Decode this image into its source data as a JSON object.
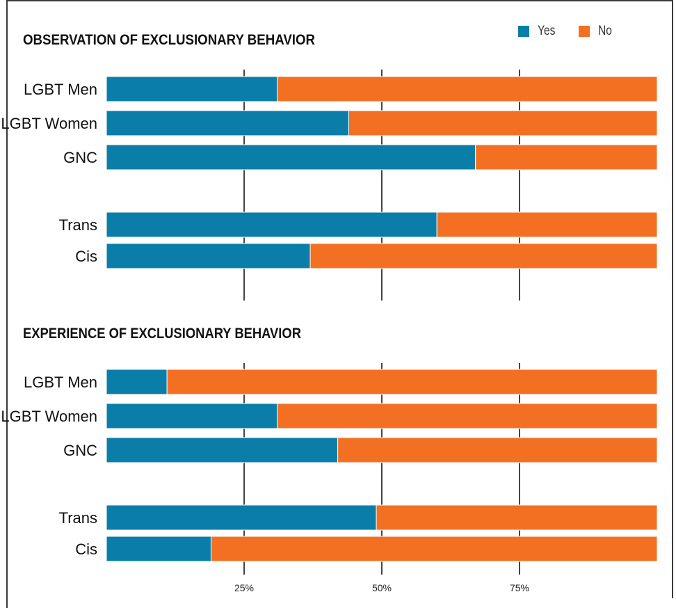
{
  "legend": {
    "yes_label": "Yes",
    "no_label": "No",
    "yes_color": "#0a7ea8",
    "no_color": "#f37023"
  },
  "chart_data": [
    {
      "type": "bar",
      "orientation": "horizontal",
      "stacked": true,
      "title": "OBSERVATION OF EXCLUSIONARY BEHAVIOR",
      "categories": [
        "LGBT Men",
        "LGBT Women",
        "GNC",
        "Trans",
        "Cis"
      ],
      "series": [
        {
          "name": "Yes",
          "color": "#0a7ea8",
          "values": [
            31,
            44,
            67,
            60,
            37
          ]
        },
        {
          "name": "No",
          "color": "#f37023",
          "values": [
            69,
            56,
            33,
            40,
            63
          ]
        }
      ],
      "xlim": [
        0,
        100
      ],
      "x_ticks": [
        25,
        50,
        75
      ],
      "x_tick_labels": [
        "",
        "",
        ""
      ],
      "legend_position": "top-right",
      "grid": true
    },
    {
      "type": "bar",
      "orientation": "horizontal",
      "stacked": true,
      "title": "EXPERIENCE OF EXCLUSIONARY BEHAVIOR",
      "categories": [
        "LGBT Men",
        "LGBT Women",
        "GNC",
        "Trans",
        "Cis"
      ],
      "series": [
        {
          "name": "Yes",
          "color": "#0a7ea8",
          "values": [
            11,
            31,
            42,
            49,
            19
          ]
        },
        {
          "name": "No",
          "color": "#f37023",
          "values": [
            89,
            69,
            58,
            51,
            81
          ]
        }
      ],
      "xlim": [
        0,
        100
      ],
      "x_ticks": [
        25,
        50,
        75
      ],
      "x_tick_labels": [
        "25%",
        "50%",
        "75%"
      ],
      "grid": true
    }
  ]
}
